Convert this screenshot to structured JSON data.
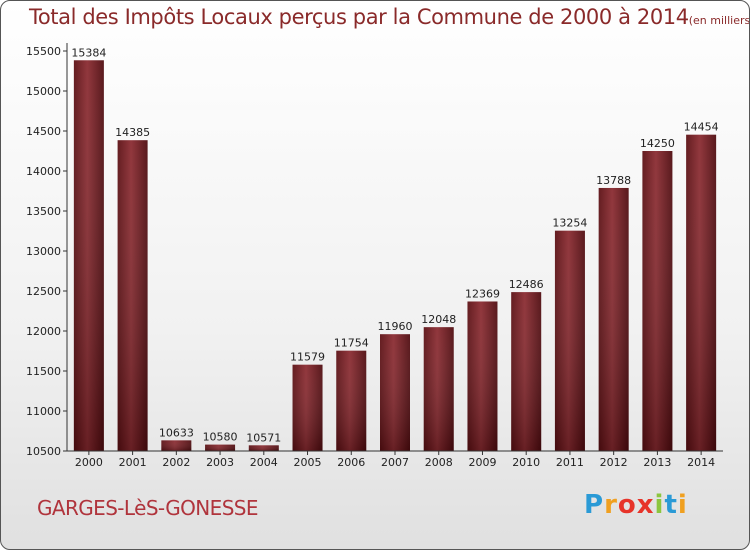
{
  "chart_data": {
    "type": "bar",
    "title": "Total des Impôts Locaux perçus par la Commune de 2000 à 2014",
    "unit": "(en milliers d'€)",
    "categories": [
      "2000",
      "2001",
      "2002",
      "2003",
      "2004",
      "2005",
      "2006",
      "2007",
      "2008",
      "2009",
      "2010",
      "2011",
      "2012",
      "2013",
      "2014"
    ],
    "values": [
      15384,
      14385,
      10633,
      10580,
      10571,
      11579,
      11754,
      11960,
      12048,
      12369,
      12486,
      13254,
      13788,
      14250,
      14454
    ],
    "ylim": [
      10500,
      15500
    ],
    "yticks": [
      10500,
      11000,
      11500,
      12000,
      12500,
      13000,
      13500,
      14000,
      14500,
      15000,
      15500
    ],
    "grid": false,
    "xlabel": "",
    "ylabel": "",
    "bar_color": "#7a1e24"
  },
  "commune": "GARGES-LèS-GONESSE",
  "brand": {
    "letters": [
      "P",
      "r",
      "o",
      "x",
      "i",
      "t",
      "i"
    ],
    "colors": [
      "#2a9ad6",
      "#f0a020",
      "#e7342a",
      "#e7342a",
      "#8cc63f",
      "#2a9ad6",
      "#f0a020"
    ]
  }
}
